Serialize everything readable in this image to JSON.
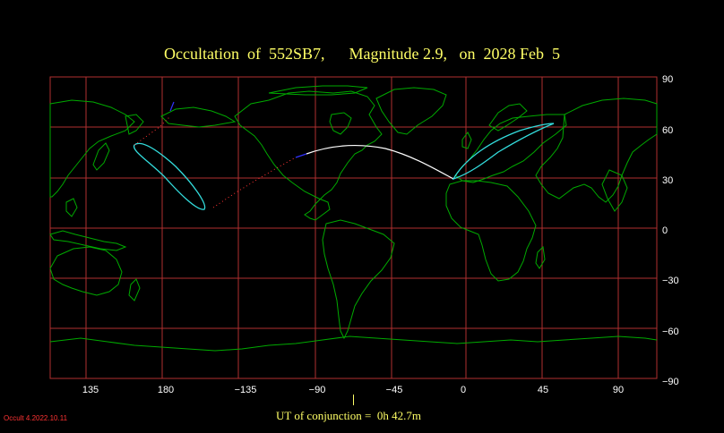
{
  "title": "Occultation  of  552SB7,      Magnitude 2.9,   on  2028 Feb  5",
  "x_ticks": [
    "135",
    "180",
    "−135",
    "−90",
    "−45",
    "0",
    "45",
    "90"
  ],
  "y_ticks": [
    "90",
    "60",
    "30",
    "0",
    "−30",
    "−60",
    "−90"
  ],
  "conjunction_text": "UT of conjunction =  0h 42.7m",
  "version": "Occult 4.2022.10.11",
  "colors": {
    "grid": "#b03030",
    "coast": "#00aa00",
    "path": "#ffffff",
    "footprint": "#33dddd",
    "dotted": "#ff3333",
    "blue": "#3333ff",
    "title": "#ffff66"
  }
}
